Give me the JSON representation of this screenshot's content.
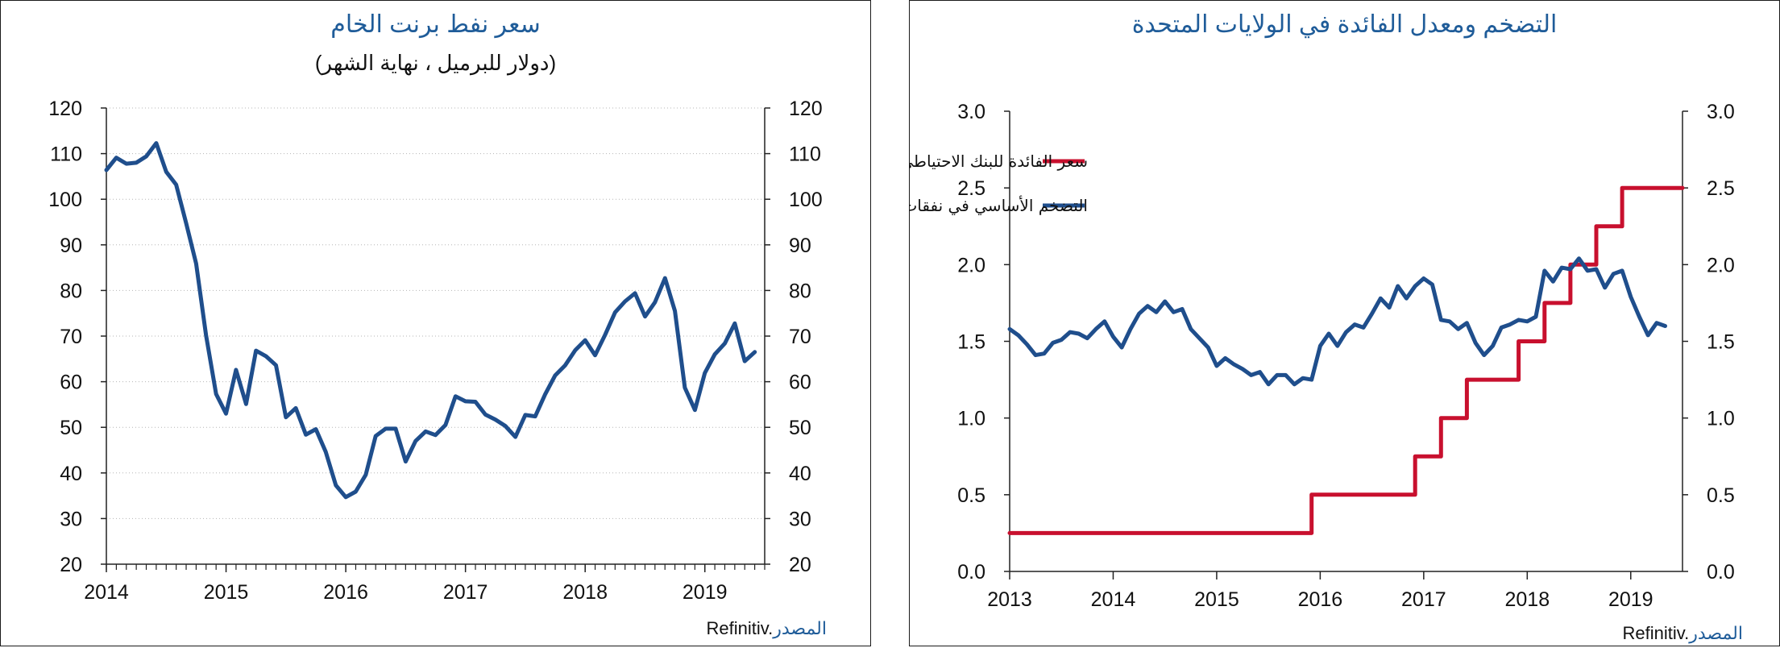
{
  "chart_data": [
    {
      "type": "line",
      "title": "سعر نفط برنت الخام",
      "subtitle": "(دولار للبرميل ، نهاية الشهر)",
      "source_label": "المصدر",
      "source_text": "Refinitiv.",
      "x_ticks": [
        "2014",
        "2015",
        "2016",
        "2017",
        "2018",
        "2019"
      ],
      "xlim": [
        2014.0,
        2019.5
      ],
      "ylim": [
        20,
        120
      ],
      "y_ticks": [
        20,
        30,
        40,
        50,
        60,
        70,
        80,
        90,
        100,
        110,
        120
      ],
      "y_axes": "both",
      "grid": "horizontal-dotted",
      "colors": {
        "line": "#1f4e8c"
      },
      "series": [
        {
          "values": [
            [
              2014.0,
              106.4
            ],
            [
              2014.083,
              109.1
            ],
            [
              2014.167,
              107.8
            ],
            [
              2014.25,
              108.0
            ],
            [
              2014.333,
              109.4
            ],
            [
              2014.417,
              112.3
            ],
            [
              2014.5,
              106.0
            ],
            [
              2014.583,
              103.2
            ],
            [
              2014.667,
              94.7
            ],
            [
              2014.75,
              85.9
            ],
            [
              2014.833,
              70.2
            ],
            [
              2014.917,
              57.3
            ],
            [
              2015.0,
              53.0
            ],
            [
              2015.083,
              62.6
            ],
            [
              2015.167,
              55.1
            ],
            [
              2015.25,
              66.8
            ],
            [
              2015.333,
              65.6
            ],
            [
              2015.417,
              63.6
            ],
            [
              2015.5,
              52.2
            ],
            [
              2015.583,
              54.2
            ],
            [
              2015.667,
              48.4
            ],
            [
              2015.75,
              49.6
            ],
            [
              2015.833,
              44.6
            ],
            [
              2015.917,
              37.3
            ],
            [
              2016.0,
              34.7
            ],
            [
              2016.083,
              35.9
            ],
            [
              2016.167,
              39.6
            ],
            [
              2016.25,
              48.1
            ],
            [
              2016.333,
              49.7
            ],
            [
              2016.417,
              49.7
            ],
            [
              2016.5,
              42.5
            ],
            [
              2016.583,
              47.0
            ],
            [
              2016.667,
              49.1
            ],
            [
              2016.75,
              48.3
            ],
            [
              2016.833,
              50.5
            ],
            [
              2016.917,
              56.8
            ],
            [
              2017.0,
              55.7
            ],
            [
              2017.083,
              55.6
            ],
            [
              2017.167,
              52.8
            ],
            [
              2017.25,
              51.7
            ],
            [
              2017.333,
              50.3
            ],
            [
              2017.417,
              47.9
            ],
            [
              2017.5,
              52.7
            ],
            [
              2017.583,
              52.4
            ],
            [
              2017.667,
              57.3
            ],
            [
              2017.75,
              61.4
            ],
            [
              2017.833,
              63.6
            ],
            [
              2017.917,
              66.9
            ],
            [
              2018.0,
              69.1
            ],
            [
              2018.083,
              65.8
            ],
            [
              2018.167,
              70.3
            ],
            [
              2018.25,
              75.2
            ],
            [
              2018.333,
              77.6
            ],
            [
              2018.417,
              79.4
            ],
            [
              2018.5,
              74.3
            ],
            [
              2018.583,
              77.4
            ],
            [
              2018.667,
              82.7
            ],
            [
              2018.75,
              75.5
            ],
            [
              2018.833,
              58.7
            ],
            [
              2018.917,
              53.8
            ],
            [
              2019.0,
              61.9
            ],
            [
              2019.083,
              66.0
            ],
            [
              2019.167,
              68.4
            ],
            [
              2019.25,
              72.8
            ],
            [
              2019.333,
              64.5
            ],
            [
              2019.417,
              66.5
            ]
          ]
        }
      ]
    },
    {
      "type": "line",
      "title": "التضخم ومعدل الفائدة في الولايات المتحدة",
      "source_label": "المصدر",
      "source_text": "Refinitiv.",
      "x_ticks": [
        "2013",
        "2014",
        "2015",
        "2016",
        "2017",
        "2018",
        "2019"
      ],
      "xlim": [
        2013.0,
        2019.5
      ],
      "ylim": [
        0.0,
        3.0
      ],
      "y_ticks": [
        "0.0",
        "0.5",
        "1.0",
        "1.5",
        "2.0",
        "2.5",
        "3.0"
      ],
      "y_axes": "both",
      "legend": "top-left",
      "series": [
        {
          "name": "سعر الفائدة للبنك الاحتياطي الفيدرالي (٪)",
          "color": "#c8102e",
          "step": true,
          "values": [
            [
              2013.0,
              0.25
            ],
            [
              2015.917,
              0.25
            ],
            [
              2015.917,
              0.5
            ],
            [
              2016.917,
              0.5
            ],
            [
              2016.917,
              0.75
            ],
            [
              2017.167,
              0.75
            ],
            [
              2017.167,
              1.0
            ],
            [
              2017.417,
              1.0
            ],
            [
              2017.417,
              1.25
            ],
            [
              2017.917,
              1.25
            ],
            [
              2017.917,
              1.5
            ],
            [
              2018.167,
              1.5
            ],
            [
              2018.167,
              1.75
            ],
            [
              2018.417,
              1.75
            ],
            [
              2018.417,
              2.0
            ],
            [
              2018.667,
              2.0
            ],
            [
              2018.667,
              2.25
            ],
            [
              2018.917,
              2.25
            ],
            [
              2018.917,
              2.5
            ],
            [
              2019.5,
              2.5
            ]
          ]
        },
        {
          "name": "التضخم الأساسي في نفقات الاستهلاك الشخصي (٪ على أساس سنوي)",
          "color": "#1f4e8c",
          "values": [
            [
              2013.0,
              1.58
            ],
            [
              2013.083,
              1.54
            ],
            [
              2013.167,
              1.48
            ],
            [
              2013.25,
              1.41
            ],
            [
              2013.333,
              1.42
            ],
            [
              2013.417,
              1.49
            ],
            [
              2013.5,
              1.51
            ],
            [
              2013.583,
              1.56
            ],
            [
              2013.667,
              1.55
            ],
            [
              2013.75,
              1.52
            ],
            [
              2013.833,
              1.58
            ],
            [
              2013.917,
              1.63
            ],
            [
              2014.0,
              1.53
            ],
            [
              2014.083,
              1.46
            ],
            [
              2014.167,
              1.58
            ],
            [
              2014.25,
              1.68
            ],
            [
              2014.333,
              1.73
            ],
            [
              2014.417,
              1.69
            ],
            [
              2014.5,
              1.76
            ],
            [
              2014.583,
              1.69
            ],
            [
              2014.667,
              1.71
            ],
            [
              2014.75,
              1.58
            ],
            [
              2014.833,
              1.52
            ],
            [
              2014.917,
              1.46
            ],
            [
              2015.0,
              1.34
            ],
            [
              2015.083,
              1.39
            ],
            [
              2015.167,
              1.35
            ],
            [
              2015.25,
              1.32
            ],
            [
              2015.333,
              1.28
            ],
            [
              2015.417,
              1.3
            ],
            [
              2015.5,
              1.22
            ],
            [
              2015.583,
              1.28
            ],
            [
              2015.667,
              1.28
            ],
            [
              2015.75,
              1.22
            ],
            [
              2015.833,
              1.26
            ],
            [
              2015.917,
              1.25
            ],
            [
              2016.0,
              1.47
            ],
            [
              2016.083,
              1.55
            ],
            [
              2016.167,
              1.47
            ],
            [
              2016.25,
              1.56
            ],
            [
              2016.333,
              1.61
            ],
            [
              2016.417,
              1.59
            ],
            [
              2016.5,
              1.68
            ],
            [
              2016.583,
              1.78
            ],
            [
              2016.667,
              1.72
            ],
            [
              2016.75,
              1.86
            ],
            [
              2016.833,
              1.78
            ],
            [
              2016.917,
              1.86
            ],
            [
              2017.0,
              1.91
            ],
            [
              2017.083,
              1.87
            ],
            [
              2017.167,
              1.64
            ],
            [
              2017.25,
              1.63
            ],
            [
              2017.333,
              1.58
            ],
            [
              2017.417,
              1.62
            ],
            [
              2017.5,
              1.49
            ],
            [
              2017.583,
              1.41
            ],
            [
              2017.667,
              1.47
            ],
            [
              2017.75,
              1.59
            ],
            [
              2017.833,
              1.61
            ],
            [
              2017.917,
              1.64
            ],
            [
              2018.0,
              1.63
            ],
            [
              2018.083,
              1.66
            ],
            [
              2018.167,
              1.96
            ],
            [
              2018.25,
              1.89
            ],
            [
              2018.333,
              1.98
            ],
            [
              2018.417,
              1.97
            ],
            [
              2018.5,
              2.04
            ],
            [
              2018.583,
              1.96
            ],
            [
              2018.667,
              1.97
            ],
            [
              2018.75,
              1.85
            ],
            [
              2018.833,
              1.94
            ],
            [
              2018.917,
              1.96
            ],
            [
              2019.0,
              1.79
            ],
            [
              2019.083,
              1.66
            ],
            [
              2019.167,
              1.54
            ],
            [
              2019.25,
              1.62
            ],
            [
              2019.333,
              1.6
            ]
          ]
        }
      ]
    }
  ]
}
